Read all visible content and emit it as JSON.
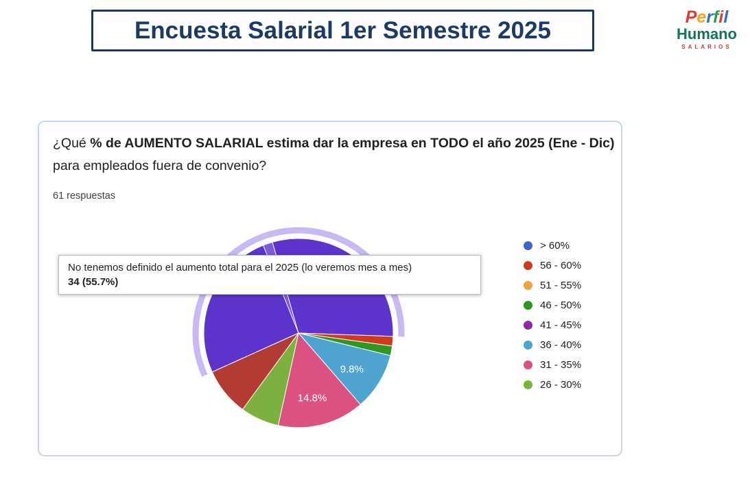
{
  "header": {
    "title": "Encuesta Salarial 1er Semestre 2025"
  },
  "logo": {
    "perfil_letters": [
      {
        "ch": "P",
        "color": "#E03A2F"
      },
      {
        "ch": "e",
        "color": "#F5A623"
      },
      {
        "ch": "r",
        "color": "#2D6FC1"
      },
      {
        "ch": "f",
        "color": "#2E9B4F"
      },
      {
        "ch": "i",
        "color": "#E03A2F"
      },
      {
        "ch": "l",
        "color": "#2D6FC1"
      }
    ],
    "humano": "Humano",
    "humano_color": "#15735B",
    "salarios": "SALARIOS",
    "salarios_color": "#D0392C"
  },
  "question": {
    "segments": [
      {
        "text": "¿Qué ",
        "bold": false
      },
      {
        "text": "% de AUMENTO SALARIAL estima dar la empresa en TODO el año 2025 (Ene - Dic)",
        "bold": true
      },
      {
        "text": " para empleados fuera de convenio?",
        "bold": false
      }
    ],
    "responses_label": "61 respuestas"
  },
  "chart_data": {
    "type": "pie",
    "total_responses": 61,
    "legend_position": "right",
    "legend": [
      {
        "label": "> 60%",
        "color": "#3B66C4"
      },
      {
        "label": "56 - 60%",
        "color": "#D0391B"
      },
      {
        "label": "51 - 55%",
        "color": "#F2A33C"
      },
      {
        "label": "46 - 50%",
        "color": "#2E9621"
      },
      {
        "label": "41 - 45%",
        "color": "#9027A8"
      },
      {
        "label": "36 - 40%",
        "color": "#4FA3D1"
      },
      {
        "label": "31 - 35%",
        "color": "#DB5181"
      },
      {
        "label": "26 - 30%",
        "color": "#7CB13F"
      }
    ],
    "slices": [
      {
        "label": "No tenemos definido el aumento total para el 2025 (lo veremos mes a mes)",
        "responses": 34,
        "pct": 55.7,
        "color": "#5C33CB",
        "start_deg": 245.7,
        "end_deg": 452,
        "highlighted": true
      },
      {
        "label": "",
        "responses": 1,
        "pct": 1.6,
        "color": "#7E5BD6",
        "start_deg": 338.1,
        "end_deg": 344,
        "highlighted": false
      },
      {
        "label": "56 - 60%",
        "responses": 1,
        "pct": 1.6,
        "color": "#D0391B",
        "start_deg": 92,
        "end_deg": 97.9,
        "highlighted": false
      },
      {
        "label": "46 - 50%",
        "responses": 1,
        "pct": 1.6,
        "color": "#2E9621",
        "start_deg": 97.9,
        "end_deg": 103.8,
        "highlighted": false
      },
      {
        "label": "36 - 40%",
        "responses": 6,
        "pct": 9.8,
        "color": "#4FA3D1",
        "start_deg": 103.8,
        "end_deg": 139.1,
        "highlighted": false
      },
      {
        "label": "31 - 35%",
        "responses": 9,
        "pct": 14.8,
        "color": "#DB5181",
        "start_deg": 139.1,
        "end_deg": 192.4,
        "highlighted": false
      },
      {
        "label": "26 - 30%",
        "responses": 4,
        "pct": 6.6,
        "color": "#7CB13F",
        "start_deg": 192.4,
        "end_deg": 216.2,
        "highlighted": false
      },
      {
        "label": "",
        "responses": 5,
        "pct": 8.2,
        "color": "#B23C34",
        "start_deg": 216.2,
        "end_deg": 245.7,
        "highlighted": false
      }
    ],
    "slice_labels": [
      {
        "text": "9.8%",
        "angle_deg": 124,
        "radius_frac": 0.68
      },
      {
        "text": "14.8%",
        "angle_deg": 168,
        "radius_frac": 0.7
      }
    ],
    "highlight": {
      "halo_color": "#C8B9F2",
      "start_deg": 245.7,
      "end_deg": 452
    },
    "tooltip": {
      "line1": "No tenemos definido el aumento total para el 2025 (lo veremos mes a mes)",
      "line2": "34 (55.7%)"
    }
  }
}
